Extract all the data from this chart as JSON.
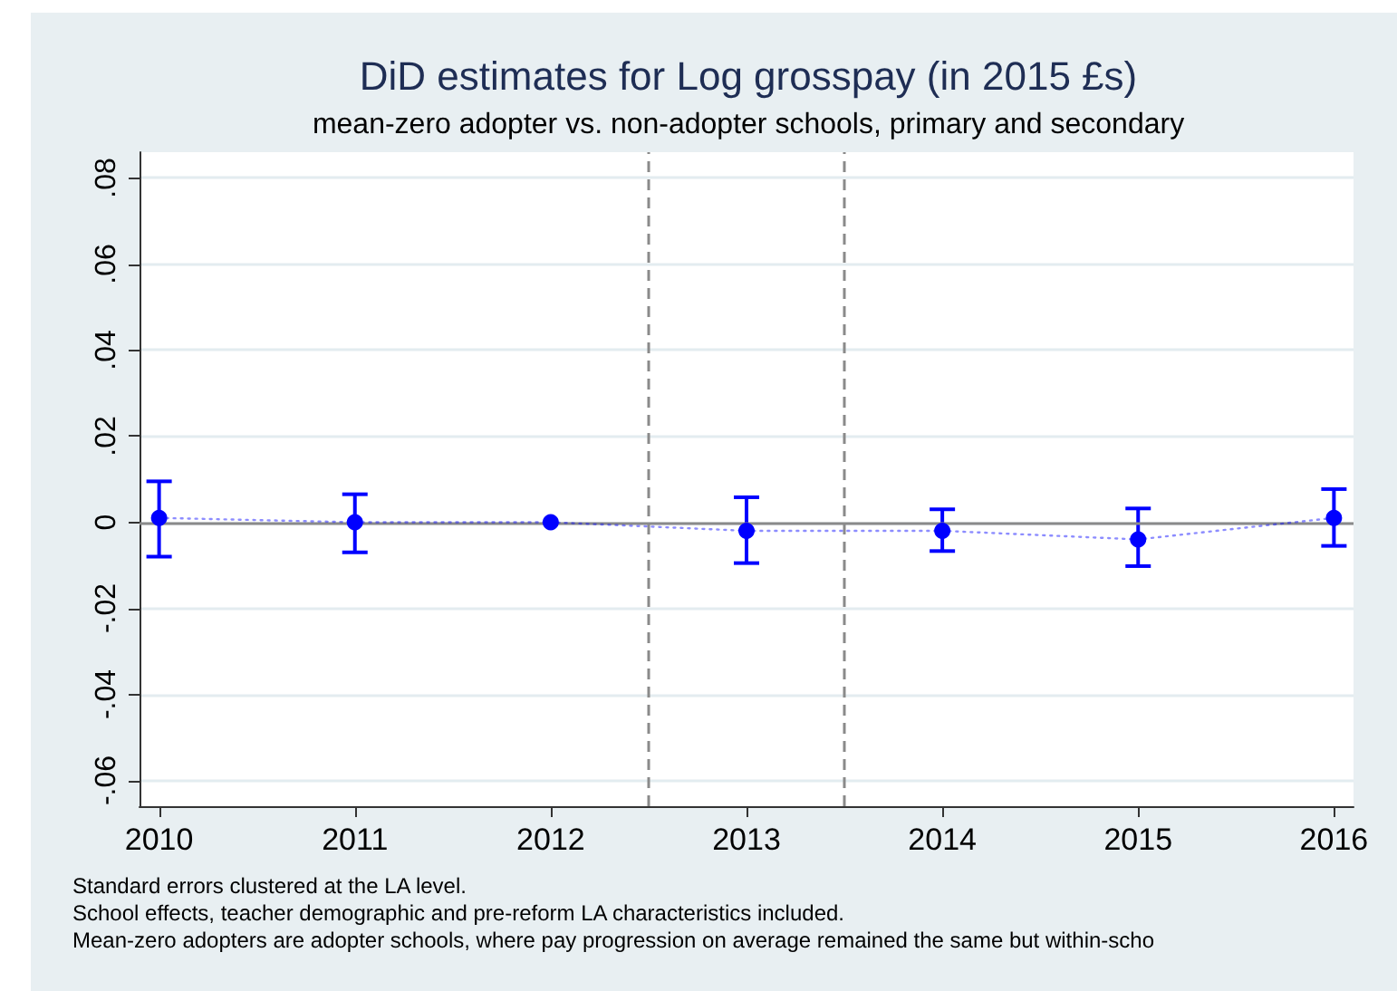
{
  "chart_data": {
    "type": "line",
    "title": "DiD estimates for Log grosspay (in 2015 £s)",
    "subtitle": "mean-zero adopter vs. non-adopter schools, primary and secondary",
    "x": [
      2010,
      2011,
      2012,
      2013,
      2014,
      2015,
      2016
    ],
    "series": [
      {
        "color": "#0000ff",
        "values": [
          0.001,
          0.0,
          0.0,
          -0.002,
          -0.002,
          -0.004,
          0.001
        ],
        "errors": [
          [
            -0.008,
            0.0095
          ],
          [
            -0.007,
            0.0065
          ],
          null,
          [
            -0.0095,
            0.0058
          ],
          [
            -0.0067,
            0.003
          ],
          [
            -0.0102,
            0.0032
          ],
          [
            -0.0055,
            0.0077
          ]
        ]
      }
    ],
    "marker": "circle",
    "line_style": "dotted",
    "xlim": [
      2009.9,
      2016.1
    ],
    "xticks": [
      2010,
      2011,
      2012,
      2013,
      2014,
      2015,
      2016
    ],
    "ylim": [
      -0.066,
      0.086
    ],
    "yticks": [
      {
        "value": -0.06,
        "label": "-.06"
      },
      {
        "value": -0.04,
        "label": "-.04"
      },
      {
        "value": -0.02,
        "label": "-.02"
      },
      {
        "value": 0,
        "label": "0"
      },
      {
        "value": 0.02,
        "label": ".02"
      },
      {
        "value": 0.04,
        "label": ".04"
      },
      {
        "value": 0.06,
        "label": ".06"
      },
      {
        "value": 0.08,
        "label": ".08"
      }
    ],
    "grid": "y",
    "ref_lines": [
      {
        "axis": "x",
        "value": 2012.5,
        "color": "#8a8a8a",
        "line_style": "dashed"
      },
      {
        "axis": "x",
        "value": 2013.5,
        "color": "#8a8a8a",
        "line_style": "dashed"
      },
      {
        "axis": "y",
        "value": 0,
        "color": "#8a8a8a",
        "line_style": "solid"
      }
    ],
    "annotations": [
      "Standard errors clustered at the LA level.",
      "School effects, teacher demographic and pre-reform LA characteristics included.",
      "Mean-zero adopters are adopter schools, where pay progression on average remained the same but within-scho"
    ]
  }
}
